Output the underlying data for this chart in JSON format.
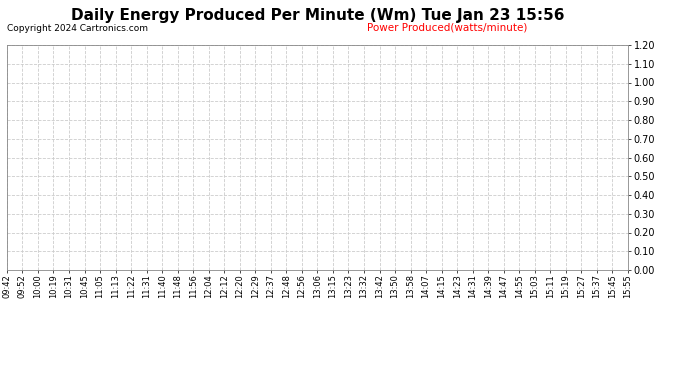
{
  "title": "Daily Energy Produced Per Minute (Wm) Tue Jan 23 15:56",
  "title_fontsize": 11,
  "copyright_text": "Copyright 2024 Cartronics.com",
  "legend_text": "Power Produced(watts/minute)",
  "legend_color": "#ff0000",
  "x_labels": [
    "09:42",
    "09:52",
    "10:00",
    "10:19",
    "10:31",
    "10:45",
    "11:05",
    "11:13",
    "11:22",
    "11:31",
    "11:40",
    "11:48",
    "11:56",
    "12:04",
    "12:12",
    "12:20",
    "12:29",
    "12:37",
    "12:48",
    "12:56",
    "13:06",
    "13:15",
    "13:23",
    "13:32",
    "13:42",
    "13:50",
    "13:58",
    "14:07",
    "14:15",
    "14:23",
    "14:31",
    "14:39",
    "14:47",
    "14:55",
    "15:03",
    "15:11",
    "15:19",
    "15:27",
    "15:37",
    "15:45",
    "15:55"
  ],
  "y_min": 0.0,
  "y_max": 1.2,
  "y_tick_step": 0.1,
  "grid_color": "#cccccc",
  "grid_linestyle": "--",
  "background_color": "#ffffff",
  "plot_area_color": "#ffffff",
  "tick_color": "#000000",
  "label_fontsize": 6,
  "copyright_fontsize": 6.5,
  "legend_fontsize": 7.5,
  "data_values": []
}
